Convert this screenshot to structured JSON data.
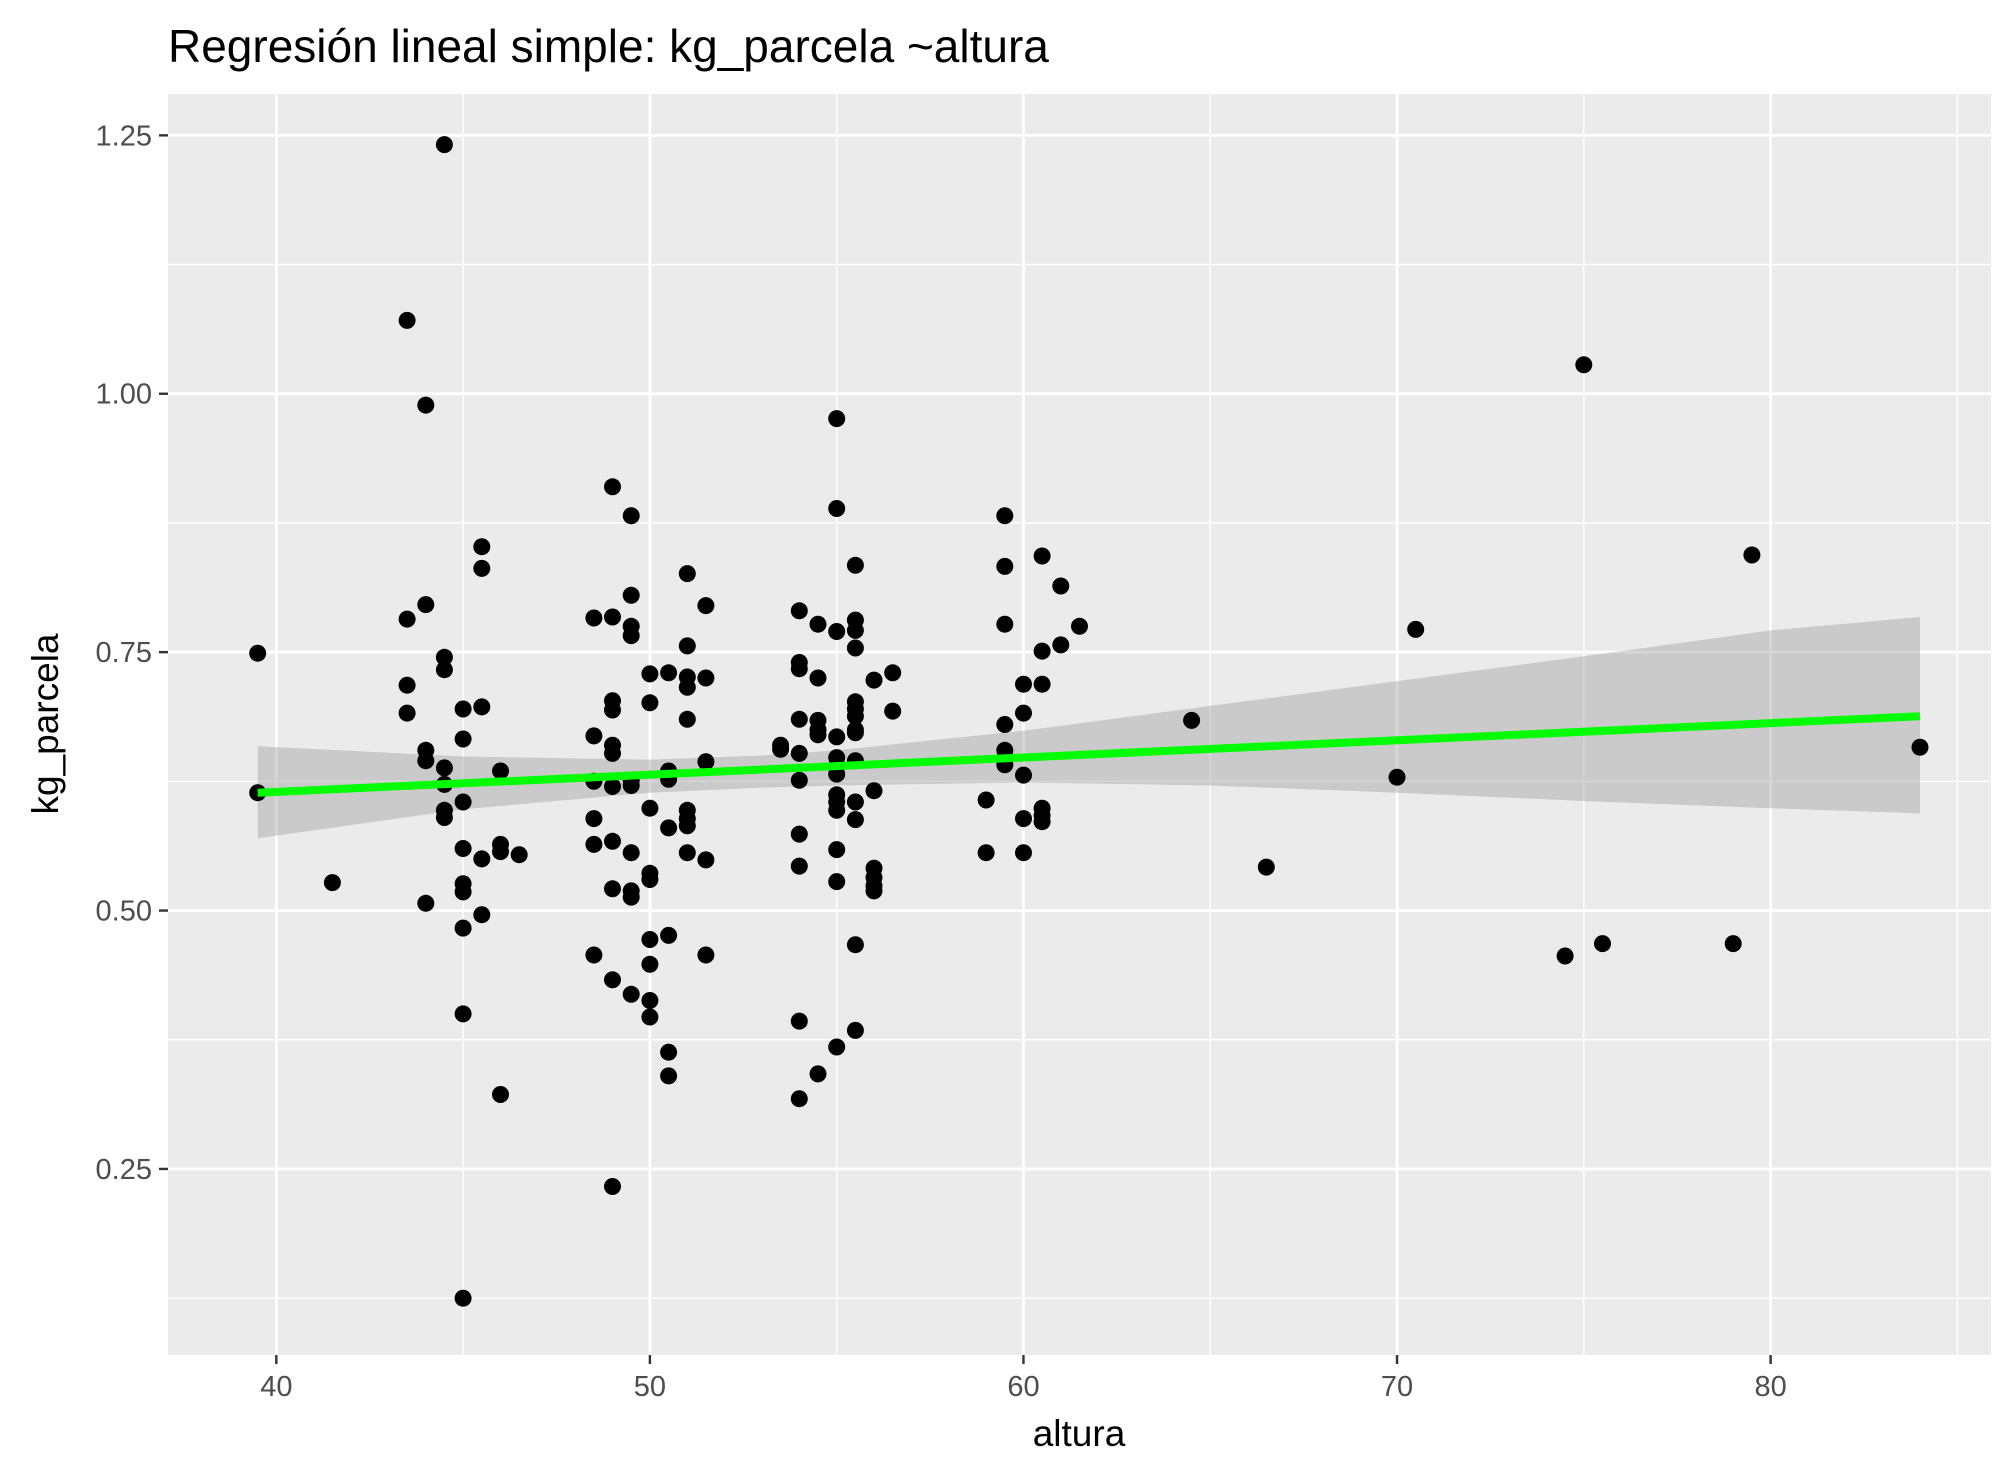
{
  "chart_data": {
    "type": "scatter",
    "title": "Regresión lineal simple:  kg_parcela ~altura",
    "xlabel": "altura",
    "ylabel": "kg_parcela",
    "xlim": [
      37.1,
      85.9
    ],
    "ylim": [
      0.07,
      1.29
    ],
    "x_ticks": [
      40,
      50,
      60,
      70,
      80
    ],
    "x_tick_labels": [
      "40",
      "50",
      "60",
      "70",
      "80"
    ],
    "y_ticks": [
      0.25,
      0.5,
      0.75,
      1.0,
      1.25
    ],
    "y_tick_labels": [
      "0.25",
      "0.50",
      "0.75",
      "1.00",
      "1.25"
    ],
    "grid": true,
    "colors": {
      "panel_background": "#ebebeb",
      "grid": "#ffffff",
      "points": "#000000",
      "regression_line": "#00ff00",
      "confidence_band": "#999999"
    },
    "points": [
      [
        39.5,
        0.749
      ],
      [
        39.5,
        0.614
      ],
      [
        41.5,
        0.527
      ],
      [
        43.5,
        1.071
      ],
      [
        43.5,
        0.782
      ],
      [
        43.5,
        0.718
      ],
      [
        43.5,
        0.691
      ],
      [
        44.0,
        0.989
      ],
      [
        44.0,
        0.796
      ],
      [
        44.0,
        0.655
      ],
      [
        44.0,
        0.645
      ],
      [
        44.0,
        0.507
      ],
      [
        44.5,
        1.241
      ],
      [
        44.5,
        0.745
      ],
      [
        44.5,
        0.733
      ],
      [
        44.5,
        0.638
      ],
      [
        44.5,
        0.622
      ],
      [
        44.5,
        0.597
      ],
      [
        44.5,
        0.59
      ],
      [
        45.0,
        0.695
      ],
      [
        45.0,
        0.666
      ],
      [
        45.0,
        0.605
      ],
      [
        45.0,
        0.56
      ],
      [
        45.0,
        0.526
      ],
      [
        45.0,
        0.518
      ],
      [
        45.0,
        0.483
      ],
      [
        45.0,
        0.4
      ],
      [
        45.0,
        0.125
      ],
      [
        45.5,
        0.852
      ],
      [
        45.5,
        0.831
      ],
      [
        45.5,
        0.697
      ],
      [
        45.5,
        0.55
      ],
      [
        45.5,
        0.496
      ],
      [
        46.0,
        0.635
      ],
      [
        46.0,
        0.564
      ],
      [
        46.0,
        0.557
      ],
      [
        46.0,
        0.322
      ],
      [
        46.5,
        0.554
      ],
      [
        48.5,
        0.783
      ],
      [
        48.5,
        0.669
      ],
      [
        48.5,
        0.625
      ],
      [
        48.5,
        0.589
      ],
      [
        48.5,
        0.564
      ],
      [
        48.5,
        0.457
      ],
      [
        49.0,
        0.91
      ],
      [
        49.0,
        0.784
      ],
      [
        49.0,
        0.703
      ],
      [
        49.0,
        0.694
      ],
      [
        49.0,
        0.66
      ],
      [
        49.0,
        0.652
      ],
      [
        49.0,
        0.62
      ],
      [
        49.0,
        0.567
      ],
      [
        49.0,
        0.521
      ],
      [
        49.0,
        0.433
      ],
      [
        49.0,
        0.233
      ],
      [
        49.5,
        0.882
      ],
      [
        49.5,
        0.805
      ],
      [
        49.5,
        0.775
      ],
      [
        49.5,
        0.766
      ],
      [
        49.5,
        0.626
      ],
      [
        49.5,
        0.621
      ],
      [
        49.5,
        0.556
      ],
      [
        49.5,
        0.519
      ],
      [
        49.5,
        0.513
      ],
      [
        49.5,
        0.419
      ],
      [
        50.0,
        0.729
      ],
      [
        50.0,
        0.701
      ],
      [
        50.0,
        0.599
      ],
      [
        50.0,
        0.536
      ],
      [
        50.0,
        0.53
      ],
      [
        50.0,
        0.472
      ],
      [
        50.0,
        0.448
      ],
      [
        50.0,
        0.413
      ],
      [
        50.0,
        0.397
      ],
      [
        50.5,
        0.73
      ],
      [
        50.5,
        0.635
      ],
      [
        50.5,
        0.627
      ],
      [
        50.5,
        0.58
      ],
      [
        50.5,
        0.476
      ],
      [
        50.5,
        0.363
      ],
      [
        50.5,
        0.34
      ],
      [
        51.0,
        0.826
      ],
      [
        51.0,
        0.756
      ],
      [
        51.0,
        0.726
      ],
      [
        51.0,
        0.716
      ],
      [
        51.0,
        0.685
      ],
      [
        51.0,
        0.597
      ],
      [
        51.0,
        0.589
      ],
      [
        51.0,
        0.582
      ],
      [
        51.0,
        0.556
      ],
      [
        51.5,
        0.795
      ],
      [
        51.5,
        0.725
      ],
      [
        51.5,
        0.644
      ],
      [
        51.5,
        0.549
      ],
      [
        51.5,
        0.457
      ],
      [
        53.5,
        0.66
      ],
      [
        53.5,
        0.656
      ],
      [
        54.0,
        0.79
      ],
      [
        54.0,
        0.74
      ],
      [
        54.0,
        0.734
      ],
      [
        54.0,
        0.685
      ],
      [
        54.0,
        0.652
      ],
      [
        54.0,
        0.626
      ],
      [
        54.0,
        0.574
      ],
      [
        54.0,
        0.543
      ],
      [
        54.0,
        0.393
      ],
      [
        54.0,
        0.318
      ],
      [
        54.5,
        0.777
      ],
      [
        54.5,
        0.725
      ],
      [
        54.5,
        0.684
      ],
      [
        54.5,
        0.675
      ],
      [
        54.5,
        0.67
      ],
      [
        54.5,
        0.342
      ],
      [
        55.0,
        0.976
      ],
      [
        55.0,
        0.889
      ],
      [
        55.0,
        0.77
      ],
      [
        55.0,
        0.668
      ],
      [
        55.0,
        0.648
      ],
      [
        55.0,
        0.632
      ],
      [
        55.0,
        0.612
      ],
      [
        55.0,
        0.605
      ],
      [
        55.0,
        0.597
      ],
      [
        55.0,
        0.559
      ],
      [
        55.0,
        0.528
      ],
      [
        55.0,
        0.368
      ],
      [
        55.5,
        0.834
      ],
      [
        55.5,
        0.781
      ],
      [
        55.5,
        0.771
      ],
      [
        55.5,
        0.754
      ],
      [
        55.5,
        0.702
      ],
      [
        55.5,
        0.695
      ],
      [
        55.5,
        0.688
      ],
      [
        55.5,
        0.675
      ],
      [
        55.5,
        0.672
      ],
      [
        55.5,
        0.645
      ],
      [
        55.5,
        0.605
      ],
      [
        55.5,
        0.588
      ],
      [
        55.5,
        0.467
      ],
      [
        55.5,
        0.384
      ],
      [
        56.0,
        0.723
      ],
      [
        56.0,
        0.616
      ],
      [
        56.0,
        0.541
      ],
      [
        56.0,
        0.532
      ],
      [
        56.0,
        0.524
      ],
      [
        56.0,
        0.519
      ],
      [
        56.5,
        0.73
      ],
      [
        56.5,
        0.693
      ],
      [
        59.0,
        0.607
      ],
      [
        59.0,
        0.556
      ],
      [
        59.5,
        0.882
      ],
      [
        59.5,
        0.833
      ],
      [
        59.5,
        0.777
      ],
      [
        59.5,
        0.68
      ],
      [
        59.5,
        0.655
      ],
      [
        59.5,
        0.641
      ],
      [
        60.0,
        0.719
      ],
      [
        60.0,
        0.691
      ],
      [
        60.0,
        0.631
      ],
      [
        60.0,
        0.589
      ],
      [
        60.0,
        0.556
      ],
      [
        60.5,
        0.843
      ],
      [
        60.5,
        0.751
      ],
      [
        60.5,
        0.719
      ],
      [
        60.5,
        0.599
      ],
      [
        60.5,
        0.592
      ],
      [
        60.5,
        0.586
      ],
      [
        61.0,
        0.814
      ],
      [
        61.0,
        0.757
      ],
      [
        61.5,
        0.775
      ],
      [
        64.5,
        0.684
      ],
      [
        66.5,
        0.542
      ],
      [
        70.0,
        0.629
      ],
      [
        70.5,
        0.772
      ],
      [
        74.5,
        0.456
      ],
      [
        75.0,
        1.028
      ],
      [
        75.5,
        0.468
      ],
      [
        79.0,
        0.468
      ],
      [
        79.5,
        0.844
      ],
      [
        84.0,
        0.658
      ]
    ],
    "regression_line": {
      "x": [
        39.5,
        84.0
      ],
      "y": [
        0.614,
        0.688
      ]
    },
    "confidence_band": {
      "x": [
        39.5,
        45.0,
        50.0,
        53.0,
        55.0,
        60.0,
        65.0,
        70.0,
        75.0,
        80.0,
        84.0
      ],
      "upper": [
        0.659,
        0.649,
        0.646,
        0.65,
        0.655,
        0.674,
        0.698,
        0.722,
        0.746,
        0.771,
        0.784
      ],
      "lower": [
        0.57,
        0.598,
        0.614,
        0.619,
        0.621,
        0.624,
        0.621,
        0.614,
        0.606,
        0.599,
        0.594
      ]
    }
  }
}
